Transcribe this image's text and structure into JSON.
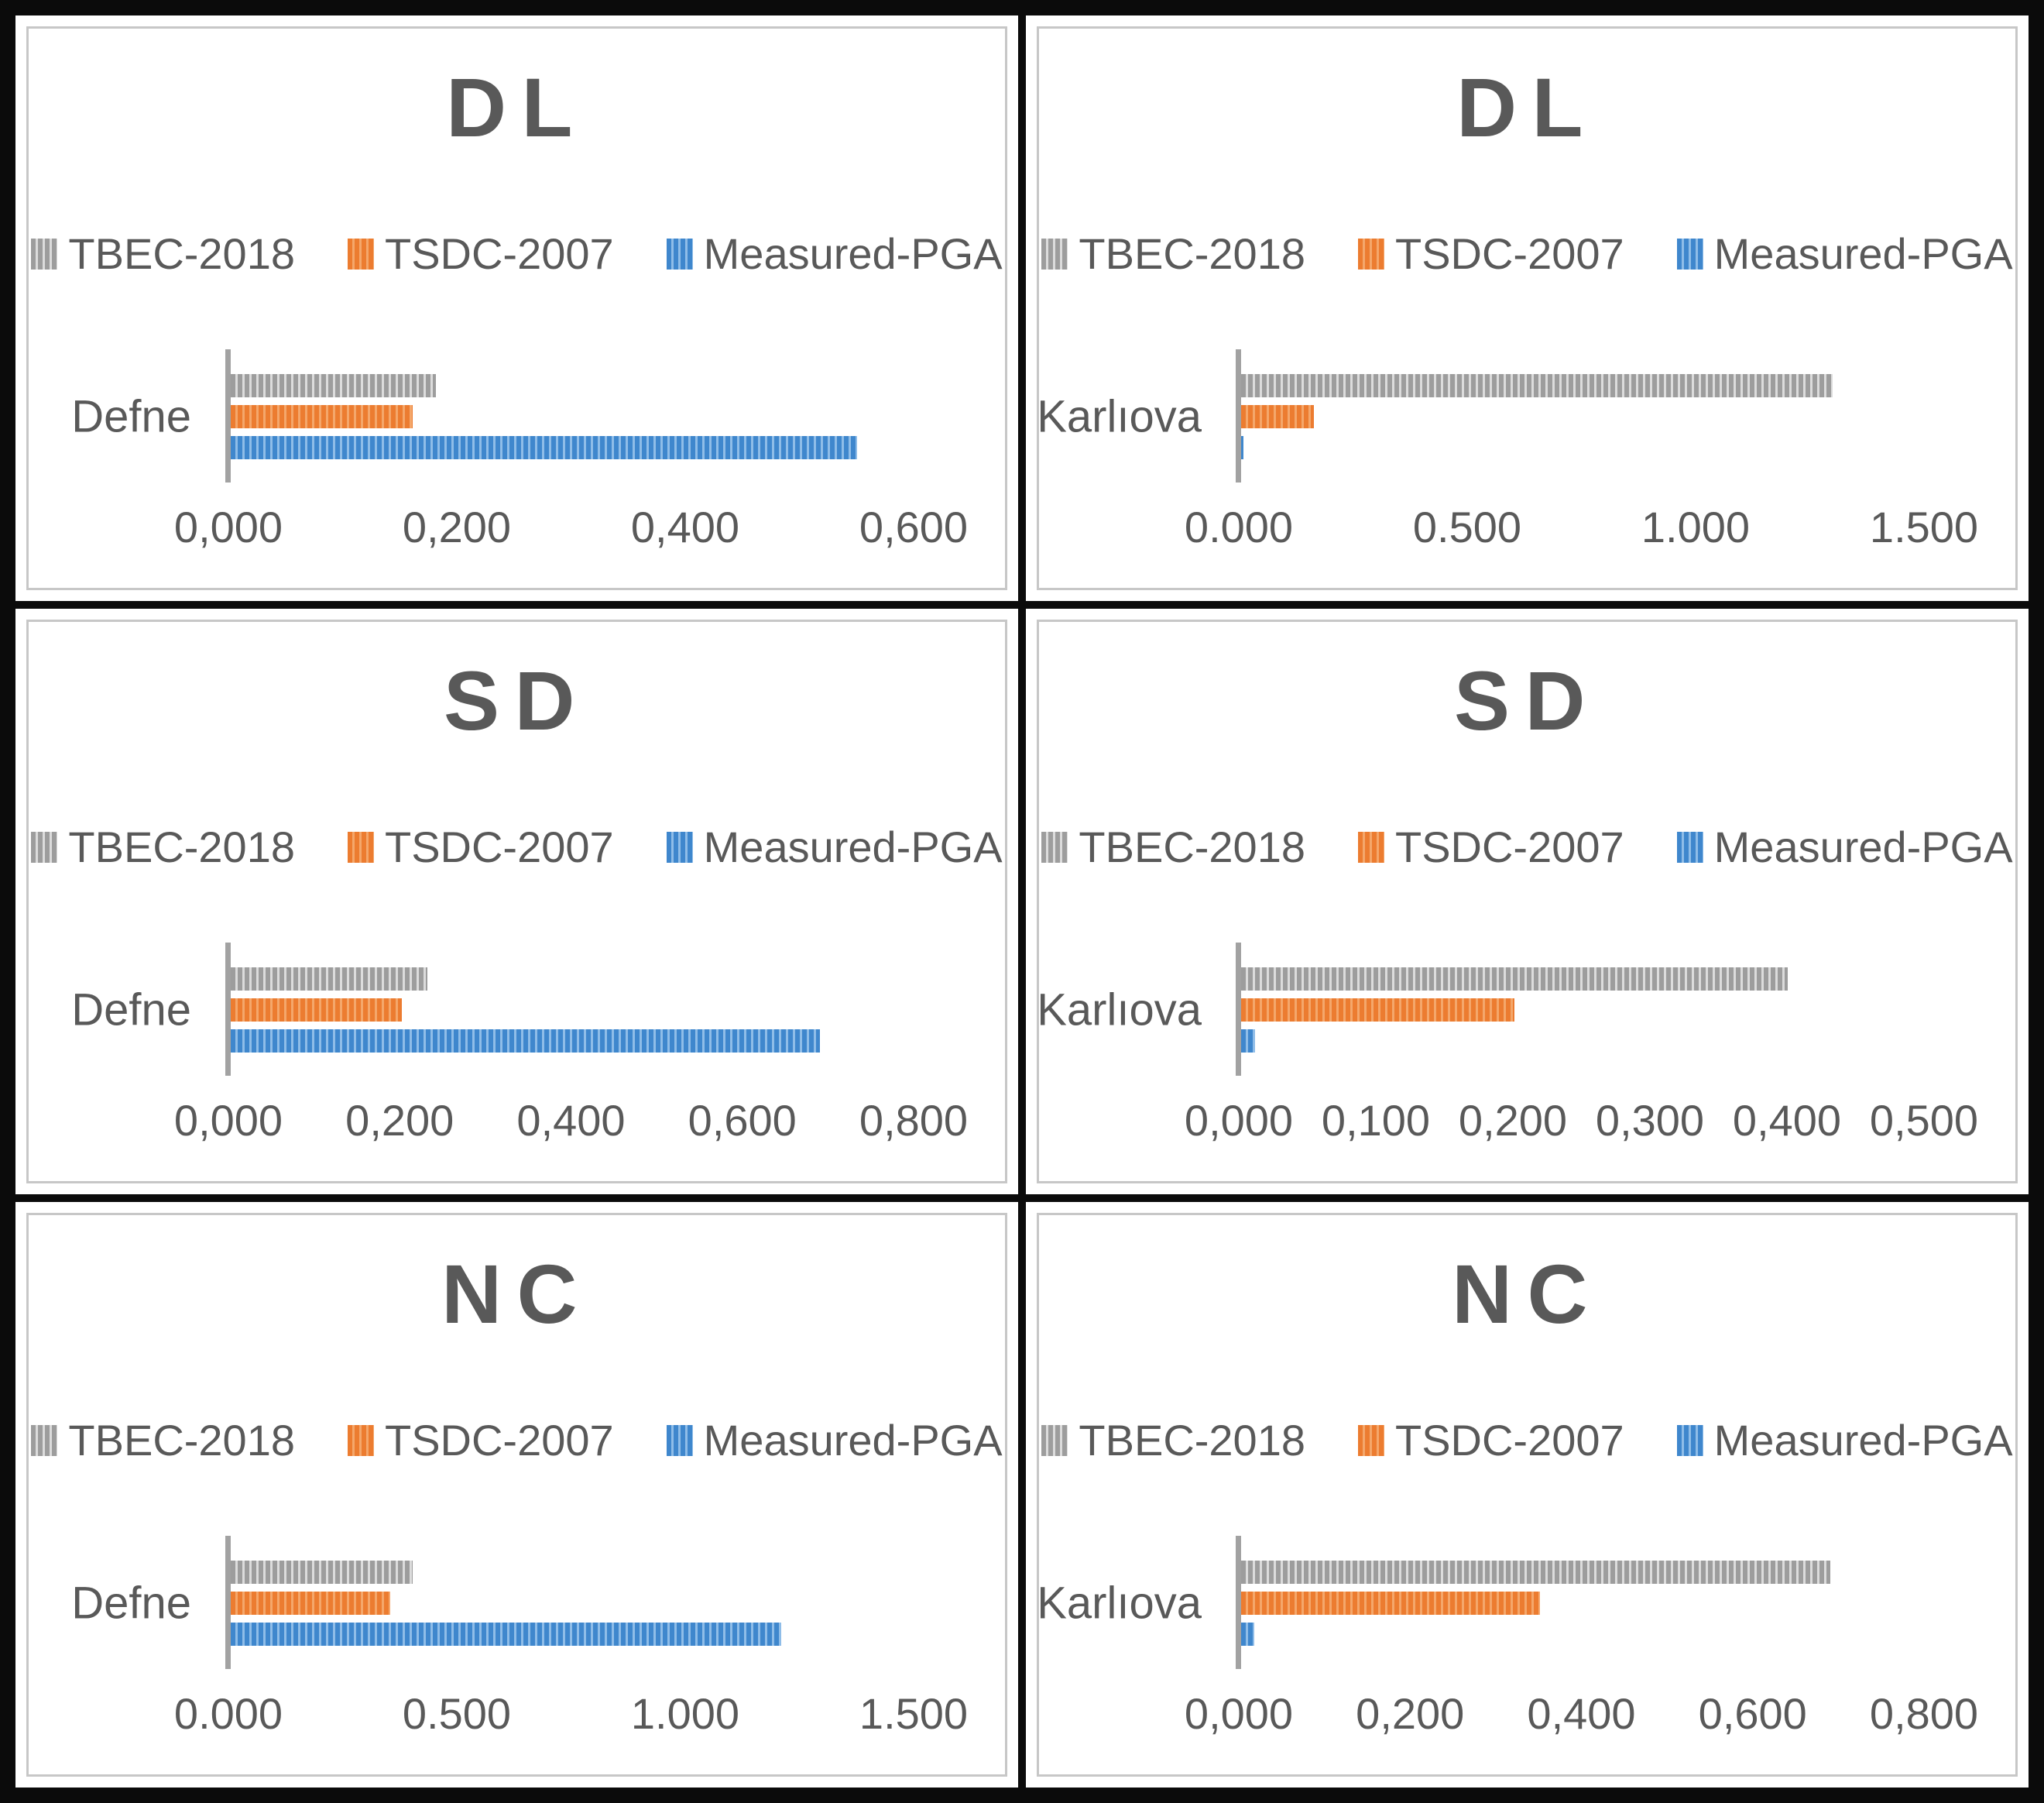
{
  "colors": {
    "TBEC-2018": "#9d9d9d",
    "TSDC-2007": "#ec7c30",
    "Measured-PGA": "#3f87cd",
    "text": "#595959",
    "axis_line": "#a2a2a2",
    "panel_border": "#c7c7c7",
    "frame": "#0b0b0b"
  },
  "chart_data": [
    {
      "type": "bar",
      "orientation": "horizontal",
      "title": "DL",
      "categories": [
        "Defne"
      ],
      "series": [
        {
          "name": "TBEC-2018",
          "values": [
            0.18
          ]
        },
        {
          "name": "TSDC-2007",
          "values": [
            0.16
          ]
        },
        {
          "name": "Measured-PGA",
          "values": [
            0.55
          ]
        }
      ],
      "xlim": [
        0,
        0.6
      ],
      "ticks": [
        "0,000",
        "0,200",
        "0,400",
        "0,600"
      ],
      "legend_position": "top",
      "grid": false
    },
    {
      "type": "bar",
      "orientation": "horizontal",
      "title": "DL",
      "categories": [
        "Karlıova"
      ],
      "series": [
        {
          "name": "TBEC-2018",
          "values": [
            1.3
          ]
        },
        {
          "name": "TSDC-2007",
          "values": [
            0.16
          ]
        },
        {
          "name": "Measured-PGA",
          "values": [
            0.005
          ]
        }
      ],
      "xlim": [
        0,
        1.5
      ],
      "ticks": [
        "0.000",
        "0.500",
        "1.000",
        "1.500"
      ],
      "legend_position": "top",
      "grid": false
    },
    {
      "type": "bar",
      "orientation": "horizontal",
      "title": "SD",
      "categories": [
        "Defne"
      ],
      "series": [
        {
          "name": "TBEC-2018",
          "values": [
            0.23
          ]
        },
        {
          "name": "TSDC-2007",
          "values": [
            0.2
          ]
        },
        {
          "name": "Measured-PGA",
          "values": [
            0.69
          ]
        }
      ],
      "xlim": [
        0,
        0.8
      ],
      "ticks": [
        "0,000",
        "0,200",
        "0,400",
        "0,600",
        "0,800"
      ],
      "legend_position": "top",
      "grid": false
    },
    {
      "type": "bar",
      "orientation": "horizontal",
      "title": "SD",
      "categories": [
        "Karlıova"
      ],
      "series": [
        {
          "name": "TBEC-2018",
          "values": [
            0.4
          ]
        },
        {
          "name": "TSDC-2007",
          "values": [
            0.2
          ]
        },
        {
          "name": "Measured-PGA",
          "values": [
            0.01
          ]
        }
      ],
      "xlim": [
        0,
        0.5
      ],
      "ticks": [
        "0,000",
        "0,100",
        "0,200",
        "0,300",
        "0,400",
        "0,500"
      ],
      "legend_position": "top",
      "grid": false
    },
    {
      "type": "bar",
      "orientation": "horizontal",
      "title": "NC",
      "categories": [
        "Defne"
      ],
      "series": [
        {
          "name": "TBEC-2018",
          "values": [
            0.4
          ]
        },
        {
          "name": "TSDC-2007",
          "values": [
            0.35
          ]
        },
        {
          "name": "Measured-PGA",
          "values": [
            1.21
          ]
        }
      ],
      "xlim": [
        0,
        1.5
      ],
      "ticks": [
        "0.000",
        "0.500",
        "1.000",
        "1.500"
      ],
      "legend_position": "top",
      "grid": false
    },
    {
      "type": "bar",
      "orientation": "horizontal",
      "title": "NC",
      "categories": [
        "Karlıova"
      ],
      "series": [
        {
          "name": "TBEC-2018",
          "values": [
            0.69
          ]
        },
        {
          "name": "TSDC-2007",
          "values": [
            0.35
          ]
        },
        {
          "name": "Measured-PGA",
          "values": [
            0.015
          ]
        }
      ],
      "xlim": [
        0,
        0.8
      ],
      "ticks": [
        "0,000",
        "0,200",
        "0,400",
        "0,600",
        "0,800"
      ],
      "legend_position": "top",
      "grid": false
    }
  ]
}
